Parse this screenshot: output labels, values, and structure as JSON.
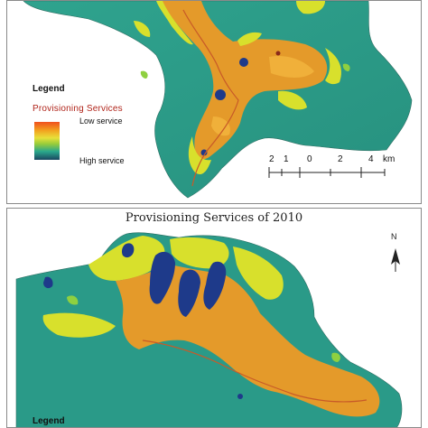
{
  "top_panel": {
    "legend": {
      "title": "Legend",
      "subtitle": "Provisioning  Services",
      "low_label": "Low service",
      "high_label": "High service"
    },
    "scale": {
      "ticks": [
        "2",
        "1",
        "0",
        "2",
        "4"
      ],
      "unit": "km"
    }
  },
  "bottom_panel": {
    "title": "Provisioning  Services of 2010",
    "north_label": "N",
    "legend": {
      "title": "Legend"
    }
  },
  "colors": {
    "high_service": "#2a9a88",
    "medium_service": "#d8e02c",
    "low_service": "#e49a2a",
    "lowest_service": "#1e3a8a",
    "frame": "#8a8a8a"
  }
}
